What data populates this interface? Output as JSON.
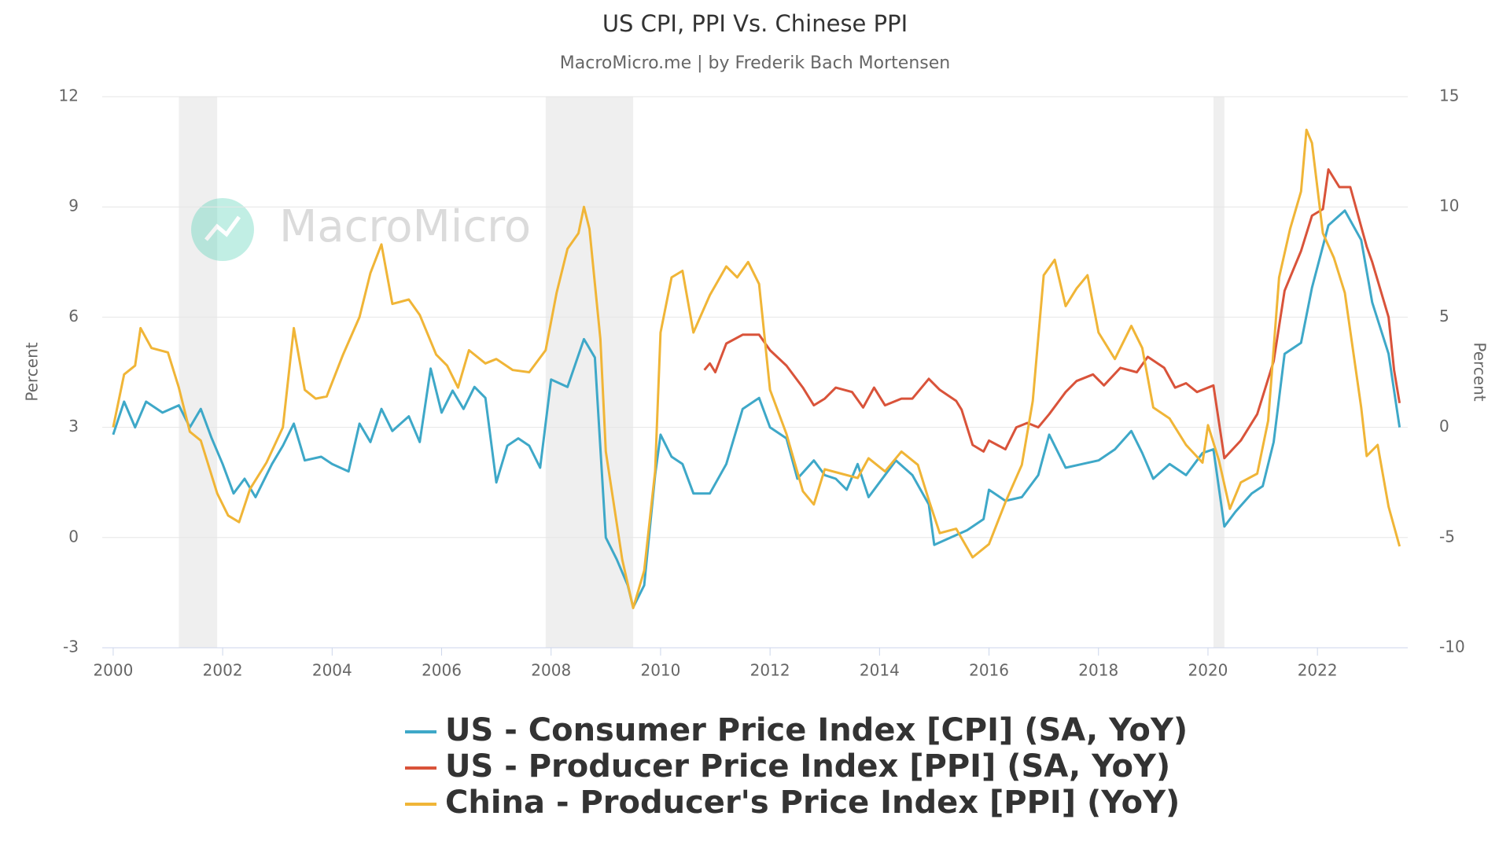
{
  "chart_data": {
    "type": "line",
    "title": "US CPI, PPI Vs. Chinese PPI",
    "subtitle": "MacroMicro.me | by Frederik Bach Mortensen",
    "watermark": "MacroMicro",
    "ylabel": "Percent",
    "y2label": "Percent",
    "xlim": [
      1999.8,
      2023.65
    ],
    "xticks": [
      2000,
      2002,
      2004,
      2006,
      2008,
      2010,
      2012,
      2014,
      2016,
      2018,
      2020,
      2022
    ],
    "ylim": [
      -3,
      12
    ],
    "yticks": [
      -3,
      0,
      3,
      6,
      9,
      12
    ],
    "y2lim": [
      -10,
      15
    ],
    "y2ticks": [
      -10,
      -5,
      0,
      5,
      10,
      15
    ],
    "grid": true,
    "shaded_ranges": [
      [
        2001.2,
        2001.9
      ],
      [
        2007.9,
        2009.5
      ],
      [
        2020.1,
        2020.3
      ]
    ],
    "series": [
      {
        "name": "US - Consumer Price Index [CPI] (SA, YoY)",
        "color": "#3ea8c8",
        "x": [
          2000.0,
          2000.2,
          2000.4,
          2000.6,
          2000.9,
          2001.2,
          2001.4,
          2001.6,
          2001.8,
          2002.0,
          2002.2,
          2002.4,
          2002.6,
          2002.9,
          2003.1,
          2003.3,
          2003.5,
          2003.8,
          2004.0,
          2004.3,
          2004.5,
          2004.7,
          2004.9,
          2005.1,
          2005.4,
          2005.6,
          2005.8,
          2006.0,
          2006.2,
          2006.4,
          2006.6,
          2006.8,
          2007.0,
          2007.2,
          2007.4,
          2007.6,
          2007.8,
          2008.0,
          2008.3,
          2008.6,
          2008.8,
          2009.0,
          2009.2,
          2009.4,
          2009.5,
          2009.7,
          2009.9,
          2010.0,
          2010.2,
          2010.4,
          2010.6,
          2010.9,
          2011.2,
          2011.5,
          2011.8,
          2012.0,
          2012.3,
          2012.5,
          2012.8,
          2013.0,
          2013.2,
          2013.4,
          2013.6,
          2013.8,
          2014.0,
          2014.3,
          2014.6,
          2014.9,
          2015.0,
          2015.3,
          2015.6,
          2015.9,
          2016.0,
          2016.3,
          2016.6,
          2016.9,
          2017.1,
          2017.4,
          2017.7,
          2018.0,
          2018.3,
          2018.6,
          2018.8,
          2019.0,
          2019.3,
          2019.6,
          2019.9,
          2020.1,
          2020.3,
          2020.5,
          2020.8,
          2021.0,
          2021.2,
          2021.4,
          2021.7,
          2021.9,
          2022.2,
          2022.5,
          2022.8,
          2023.0,
          2023.3,
          2023.5
        ],
        "values": [
          2.8,
          3.7,
          3.0,
          3.7,
          3.4,
          3.6,
          3.0,
          3.5,
          2.7,
          2.0,
          1.2,
          1.6,
          1.1,
          2.0,
          2.5,
          3.1,
          2.1,
          2.2,
          2.0,
          1.8,
          3.1,
          2.6,
          3.5,
          2.9,
          3.3,
          2.6,
          4.6,
          3.4,
          4.0,
          3.5,
          4.1,
          3.8,
          1.5,
          2.5,
          2.7,
          2.5,
          1.9,
          4.3,
          4.1,
          5.4,
          4.9,
          0.0,
          -0.6,
          -1.3,
          -1.9,
          -1.3,
          1.7,
          2.8,
          2.2,
          2.0,
          1.2,
          1.2,
          2.0,
          3.5,
          3.8,
          3.0,
          2.7,
          1.6,
          2.1,
          1.7,
          1.6,
          1.3,
          2.0,
          1.1,
          1.5,
          2.1,
          1.7,
          0.9,
          -0.2,
          0.0,
          0.2,
          0.5,
          1.3,
          1.0,
          1.1,
          1.7,
          2.8,
          1.9,
          2.0,
          2.1,
          2.4,
          2.9,
          2.3,
          1.6,
          2.0,
          1.7,
          2.3,
          2.4,
          0.3,
          0.7,
          1.2,
          1.4,
          2.6,
          5.0,
          5.3,
          6.8,
          8.5,
          8.9,
          8.1,
          6.4,
          5.0,
          3.0
        ]
      },
      {
        "name": "US - Producer Price Index [PPI] (SA, YoY)",
        "color": "#d9533a",
        "axis": "y2",
        "x": [
          2010.8,
          2010.9,
          2011.0,
          2011.2,
          2011.5,
          2011.8,
          2012.0,
          2012.3,
          2012.6,
          2012.8,
          2013.0,
          2013.2,
          2013.5,
          2013.7,
          2013.9,
          2014.1,
          2014.4,
          2014.6,
          2014.9,
          2015.1,
          2015.4,
          2015.5,
          2015.7,
          2015.9,
          2016.0,
          2016.3,
          2016.5,
          2016.7,
          2016.9,
          2017.1,
          2017.4,
          2017.6,
          2017.9,
          2018.1,
          2018.4,
          2018.7,
          2018.9,
          2019.2,
          2019.4,
          2019.6,
          2019.8,
          2020.1,
          2020.3,
          2020.6,
          2020.9,
          2021.2,
          2021.4,
          2021.7,
          2021.9,
          2022.1,
          2022.2,
          2022.4,
          2022.6,
          2022.9,
          2023.0,
          2023.3,
          2023.4,
          2023.5
        ],
        "values": [
          2.6,
          2.9,
          2.5,
          3.8,
          4.2,
          4.2,
          3.5,
          2.8,
          1.8,
          1.0,
          1.3,
          1.8,
          1.6,
          0.9,
          1.8,
          1.0,
          1.3,
          1.3,
          2.2,
          1.7,
          1.2,
          0.8,
          -0.8,
          -1.1,
          -0.6,
          -1.0,
          0.0,
          0.2,
          0.0,
          0.6,
          1.6,
          2.1,
          2.4,
          1.9,
          2.7,
          2.5,
          3.2,
          2.7,
          1.8,
          2.0,
          1.6,
          1.9,
          -1.4,
          -0.6,
          0.6,
          3.0,
          6.2,
          8.0,
          9.6,
          9.9,
          11.7,
          10.9,
          10.9,
          8.2,
          7.5,
          5.0,
          2.6,
          1.1
        ]
      },
      {
        "name": "China - Producer's Price Index [PPI] (YoY)",
        "color": "#f0b537",
        "axis": "y2",
        "x": [
          2000.0,
          2000.2,
          2000.4,
          2000.5,
          2000.7,
          2001.0,
          2001.2,
          2001.4,
          2001.6,
          2001.9,
          2002.1,
          2002.3,
          2002.5,
          2002.8,
          2003.1,
          2003.3,
          2003.5,
          2003.7,
          2003.9,
          2004.2,
          2004.5,
          2004.7,
          2004.9,
          2005.1,
          2005.4,
          2005.6,
          2005.9,
          2006.1,
          2006.3,
          2006.5,
          2006.8,
          2007.0,
          2007.3,
          2007.6,
          2007.9,
          2008.1,
          2008.3,
          2008.5,
          2008.6,
          2008.7,
          2008.9,
          2009.0,
          2009.3,
          2009.5,
          2009.7,
          2009.9,
          2010.0,
          2010.2,
          2010.4,
          2010.6,
          2010.9,
          2011.2,
          2011.4,
          2011.6,
          2011.8,
          2012.0,
          2012.3,
          2012.6,
          2012.8,
          2013.0,
          2013.3,
          2013.6,
          2013.8,
          2014.1,
          2014.4,
          2014.7,
          2014.9,
          2015.1,
          2015.4,
          2015.7,
          2016.0,
          2016.3,
          2016.6,
          2016.8,
          2017.0,
          2017.2,
          2017.4,
          2017.6,
          2017.8,
          2018.0,
          2018.3,
          2018.6,
          2018.8,
          2019.0,
          2019.3,
          2019.6,
          2019.9,
          2020.0,
          2020.2,
          2020.4,
          2020.6,
          2020.9,
          2021.1,
          2021.3,
          2021.5,
          2021.7,
          2021.8,
          2021.9,
          2022.1,
          2022.3,
          2022.5,
          2022.8,
          2022.9,
          2023.1,
          2023.3,
          2023.5
        ],
        "values": [
          0.0,
          2.4,
          2.8,
          4.5,
          3.6,
          3.4,
          1.8,
          -0.2,
          -0.6,
          -3.0,
          -4.0,
          -4.3,
          -2.8,
          -1.6,
          0.0,
          4.5,
          1.7,
          1.3,
          1.4,
          3.3,
          5.0,
          7.0,
          8.3,
          5.6,
          5.8,
          5.1,
          3.3,
          2.8,
          1.8,
          3.5,
          2.9,
          3.1,
          2.6,
          2.5,
          3.5,
          6.1,
          8.1,
          8.8,
          10.0,
          9.0,
          4.0,
          -1.1,
          -6.0,
          -8.2,
          -6.5,
          -2.0,
          4.3,
          6.8,
          7.1,
          4.3,
          6.0,
          7.3,
          6.8,
          7.5,
          6.5,
          1.7,
          -0.3,
          -2.9,
          -3.5,
          -1.9,
          -2.1,
          -2.3,
          -1.4,
          -2.0,
          -1.1,
          -1.7,
          -3.3,
          -4.8,
          -4.6,
          -5.9,
          -5.3,
          -3.4,
          -1.7,
          1.2,
          6.9,
          7.6,
          5.5,
          6.3,
          6.9,
          4.3,
          3.1,
          4.6,
          3.6,
          0.9,
          0.4,
          -0.8,
          -1.6,
          0.1,
          -1.5,
          -3.7,
          -2.5,
          -2.1,
          0.3,
          6.8,
          9.0,
          10.7,
          13.5,
          12.9,
          8.8,
          7.7,
          6.1,
          0.9,
          -1.3,
          -0.8,
          -3.6,
          -5.4
        ]
      }
    ]
  }
}
